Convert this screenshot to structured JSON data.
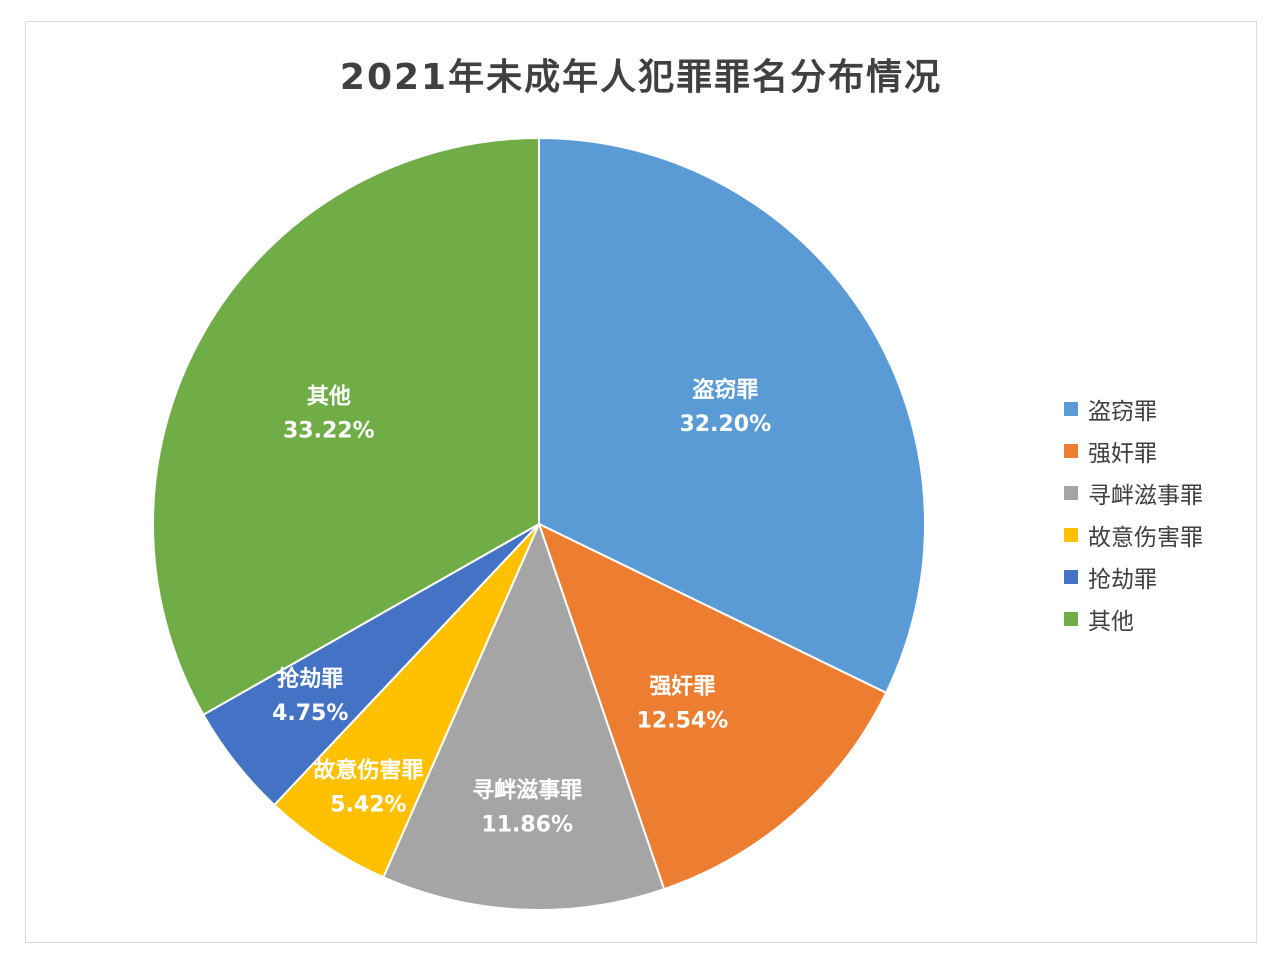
{
  "chart_data": {
    "type": "pie",
    "title": "2021年未成年人犯罪罪名分布情况",
    "legend_position": "right",
    "slices": [
      {
        "name": "盗窃罪",
        "value": 32.2,
        "label": "32.20%",
        "color": "#5B9BD5"
      },
      {
        "name": "强奸罪",
        "value": 12.54,
        "label": "12.54%",
        "color": "#ED7D31"
      },
      {
        "name": "寻衅滋事罪",
        "value": 11.86,
        "label": "11.86%",
        "color": "#A5A5A5"
      },
      {
        "name": "故意伤害罪",
        "value": 5.42,
        "label": "5.42%",
        "color": "#FFC000"
      },
      {
        "name": "抢劫罪",
        "value": 4.75,
        "label": "4.75%",
        "color": "#4472C4"
      },
      {
        "name": "其他",
        "value": 33.22,
        "label": "33.22%",
        "color": "#70AD47"
      }
    ]
  }
}
